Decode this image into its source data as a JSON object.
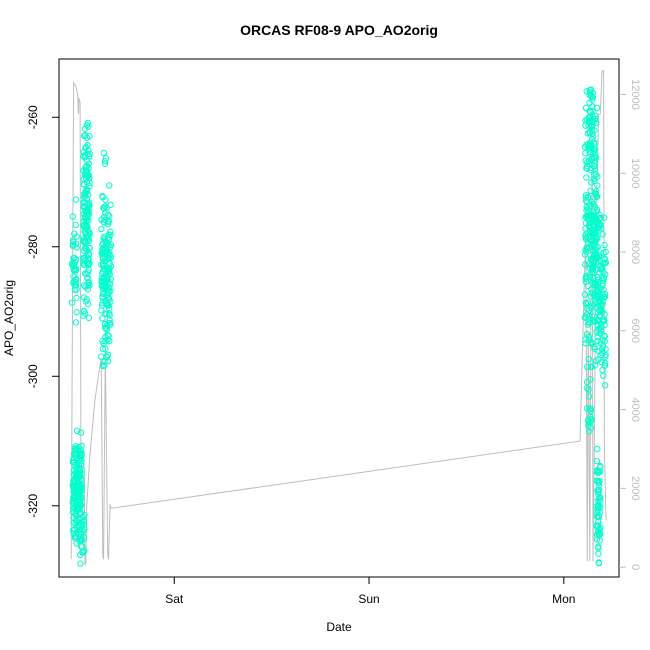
{
  "chart_data": {
    "type": "scatter",
    "title": "ORCAS RF08-9 APO_AO2orig",
    "xlabel": "Date",
    "ylabel": "APO_AO2orig",
    "x_ticks": [
      "Sat",
      "Sun",
      "Mon"
    ],
    "x_tick_values": [
      24,
      48,
      72
    ],
    "xlim": [
      9.8,
      78.8
    ],
    "ylim": [
      -331,
      -251
    ],
    "y_ticks": [
      -320,
      -300,
      -280,
      -260
    ],
    "y2_lim": [
      -250,
      12900
    ],
    "y2_ticks": [
      0,
      2000,
      4000,
      6000,
      8000,
      10000,
      12000
    ],
    "grid": false,
    "legend": "none",
    "colors": {
      "points": "#00FFCC",
      "altitude_line": "#BEBEBE",
      "axis": "#000000",
      "secondary_axis": "#BEBEBE"
    },
    "series": [
      {
        "kind": "points",
        "clusters": [
          {
            "x_range": [
              11.4,
              12.0
            ],
            "y_range": [
              -296,
              -270
            ],
            "count": 40
          },
          {
            "x_range": [
              11.5,
              12.6
            ],
            "y_range": [
              -327,
              -308
            ],
            "count": 180
          },
          {
            "x_range": [
              12.4,
              13.0
            ],
            "y_range": [
              -330,
              -320
            ],
            "count": 20
          },
          {
            "x_range": [
              12.8,
              13.6
            ],
            "y_range": [
              -292,
              -258
            ],
            "count": 160
          },
          {
            "x_range": [
              15.0,
              16.2
            ],
            "y_range": [
              -300,
              -269
            ],
            "count": 160
          },
          {
            "x_range": [
              15.2,
              15.6
            ],
            "y_range": [
              -270,
              -265
            ],
            "count": 4
          },
          {
            "x_range": [
              74.6,
              76.2
            ],
            "y_range": [
              -300,
              -255
            ],
            "count": 240
          },
          {
            "x_range": [
              75.0,
              75.6
            ],
            "y_range": [
              -268,
              -253
            ],
            "count": 30
          },
          {
            "x_range": [
              74.8,
              75.4
            ],
            "y_range": [
              -314,
              -296
            ],
            "count": 20
          },
          {
            "x_range": [
              75.9,
              76.6
            ],
            "y_range": [
              -300,
              -274
            ],
            "count": 50
          },
          {
            "x_range": [
              76.0,
              76.5
            ],
            "y_range": [
              -330,
              -310
            ],
            "count": 60
          },
          {
            "x_range": [
              76.5,
              77.2
            ],
            "y_range": [
              -304,
              -273
            ],
            "count": 60
          }
        ]
      },
      {
        "kind": "line",
        "axis": "secondary",
        "x": [
          11.3,
          11.6,
          11.9,
          12.1,
          12.2,
          12.25,
          12.4,
          12.5,
          12.9,
          13.0,
          13.1,
          13.2,
          13.6,
          14.2,
          14.9,
          15.0,
          15.2,
          15.3,
          15.5,
          15.8,
          15.9,
          16.1,
          16.2,
          16.4,
          74.0,
          74.7,
          74.9,
          75.0,
          75.1,
          75.2,
          75.4,
          75.5,
          75.6,
          75.8,
          75.9,
          76.0,
          76.1,
          76.3,
          76.5,
          76.7,
          76.9,
          77.0,
          77.2
        ],
        "y": [
          200,
          12300,
          12200,
          12000,
          11500,
          11900,
          11800,
          3000,
          2500,
          50,
          100,
          1500,
          2800,
          4200,
          5200,
          5300,
          300,
          200,
          5500,
          300,
          200,
          1600,
          1500,
          1500,
          3200,
          8500,
          150,
          6000,
          3500,
          150,
          9000,
          10000,
          150,
          4000,
          8000,
          9500,
          9800,
          11500,
          11500,
          12600,
          12600,
          3000,
          1200
        ]
      }
    ]
  }
}
